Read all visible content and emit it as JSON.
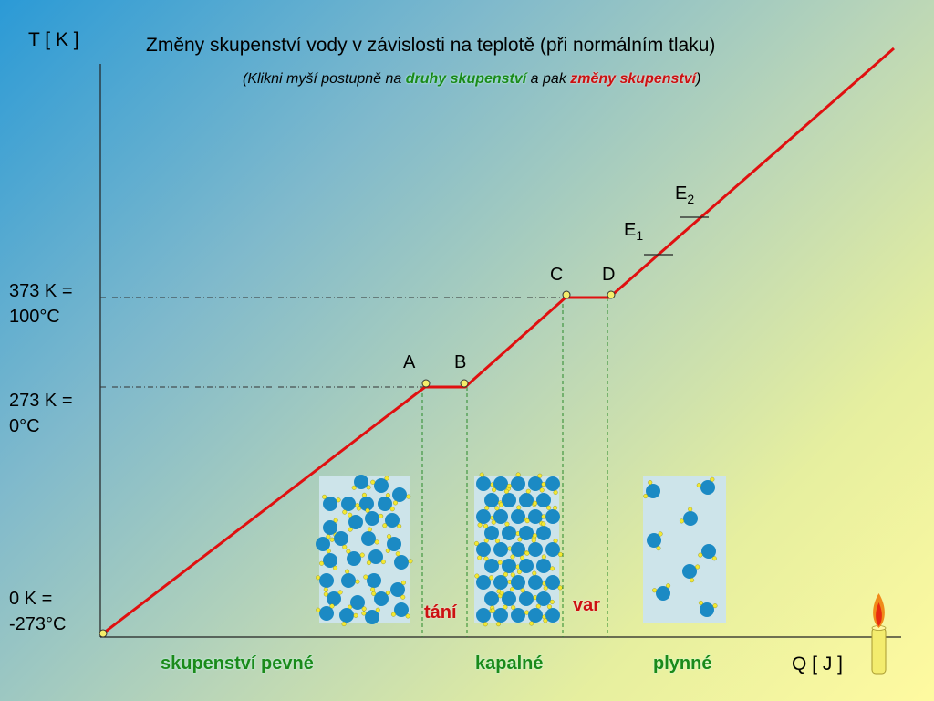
{
  "title": "Změny skupenství vody v závislosti na teplotě (při normálním tlaku)",
  "subtitle": {
    "prefix": "(Klikni myší postupně na ",
    "link1": "druhy skupenství",
    "middle": " a pak ",
    "link2": "změny skupenství",
    "suffix": ")"
  },
  "axes": {
    "y_label": "T [ K ]",
    "x_label": "Q [ J ]"
  },
  "y_ticks": [
    {
      "line1": "373 K =",
      "line2": "100°C"
    },
    {
      "line1": "273 K =",
      "line2": "0°C"
    },
    {
      "line1": "0 K =",
      "line2": "-273°C"
    }
  ],
  "points": {
    "A": "A",
    "B": "B",
    "C": "C",
    "D": "D",
    "E1": "E",
    "E1_sub": "1",
    "E2": "E",
    "E2_sub": "2"
  },
  "transitions": {
    "melting": "tání",
    "boiling": "var"
  },
  "phases": {
    "solid": "skupenství pevné",
    "liquid": "kapalné",
    "gas": "plynné"
  },
  "colors": {
    "curve": "#e01010",
    "guides": "#2a8a2a",
    "phase_text": "#1a8a1a",
    "transition_text": "#cc1111",
    "molecule": "#1b8ac4",
    "hydrogen": "#f3e832",
    "box_bg": "#cde4ea"
  },
  "icons": [
    "candle-icon"
  ]
}
